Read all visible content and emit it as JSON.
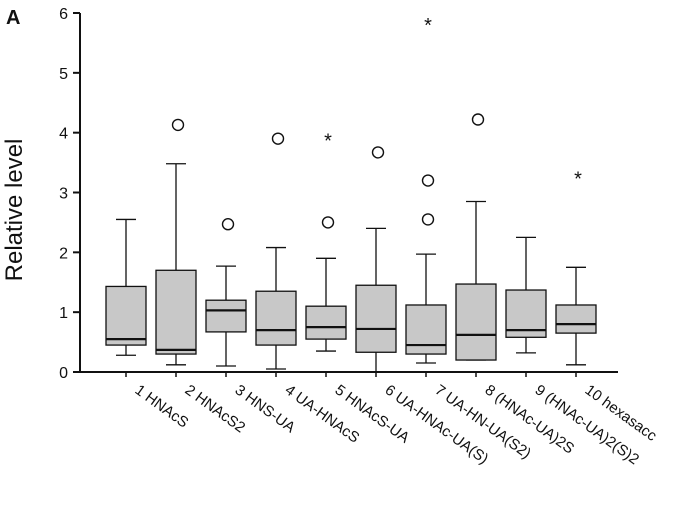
{
  "chart_data": {
    "type": "boxplot",
    "panel_label": "A",
    "title": "",
    "xlabel": "",
    "ylabel": "Relative level",
    "ylim": [
      0,
      6
    ],
    "yticks": [
      0,
      1,
      2,
      3,
      4,
      5,
      6
    ],
    "grid": false,
    "categories": [
      "1 HNAcS",
      "2 HNAcS2",
      "3 HNS-UA",
      "4 UA-HNAcS",
      "5 HNAcS-UA",
      "6 UA-HNAc-UA(S)",
      "7 UA-HN-UA(S2)",
      "8 (HNAc-UA)2S",
      "9 (HNAc-UA)2(S)2",
      "10 hexasacc"
    ],
    "boxes": [
      {
        "whisker_low": 0.28,
        "q1": 0.45,
        "median": 0.55,
        "q3": 1.43,
        "whisker_high": 2.55,
        "outliers": [],
        "extremes": []
      },
      {
        "whisker_low": 0.12,
        "q1": 0.3,
        "median": 0.37,
        "q3": 1.7,
        "whisker_high": 3.48,
        "outliers": [
          4.13
        ],
        "extremes": []
      },
      {
        "whisker_low": 0.1,
        "q1": 0.67,
        "median": 1.03,
        "q3": 1.2,
        "whisker_high": 1.77,
        "outliers": [
          2.47
        ],
        "extremes": []
      },
      {
        "whisker_low": 0.05,
        "q1": 0.45,
        "median": 0.7,
        "q3": 1.35,
        "whisker_high": 2.08,
        "outliers": [
          3.9
        ],
        "extremes": []
      },
      {
        "whisker_low": 0.35,
        "q1": 0.55,
        "median": 0.75,
        "q3": 1.1,
        "whisker_high": 1.9,
        "outliers": [
          2.5
        ],
        "extremes": [
          3.9
        ]
      },
      {
        "whisker_low": 0.0,
        "q1": 0.33,
        "median": 0.72,
        "q3": 1.45,
        "whisker_high": 2.4,
        "outliers": [
          3.67
        ],
        "extremes": []
      },
      {
        "whisker_low": 0.15,
        "q1": 0.3,
        "median": 0.45,
        "q3": 1.12,
        "whisker_high": 1.97,
        "outliers": [
          2.55,
          3.2
        ],
        "extremes": [
          5.83
        ]
      },
      {
        "whisker_low": 0.2,
        "q1": 0.2,
        "median": 0.62,
        "q3": 1.47,
        "whisker_high": 2.85,
        "outliers": [
          4.22
        ],
        "extremes": []
      },
      {
        "whisker_low": 0.32,
        "q1": 0.58,
        "median": 0.7,
        "q3": 1.37,
        "whisker_high": 2.25,
        "outliers": [],
        "extremes": []
      },
      {
        "whisker_low": 0.12,
        "q1": 0.65,
        "median": 0.8,
        "q3": 1.12,
        "whisker_high": 1.75,
        "outliers": [],
        "extremes": [
          3.27
        ]
      }
    ],
    "colors": {
      "box_fill": "#c8c8c8",
      "stroke": "#111111"
    }
  }
}
